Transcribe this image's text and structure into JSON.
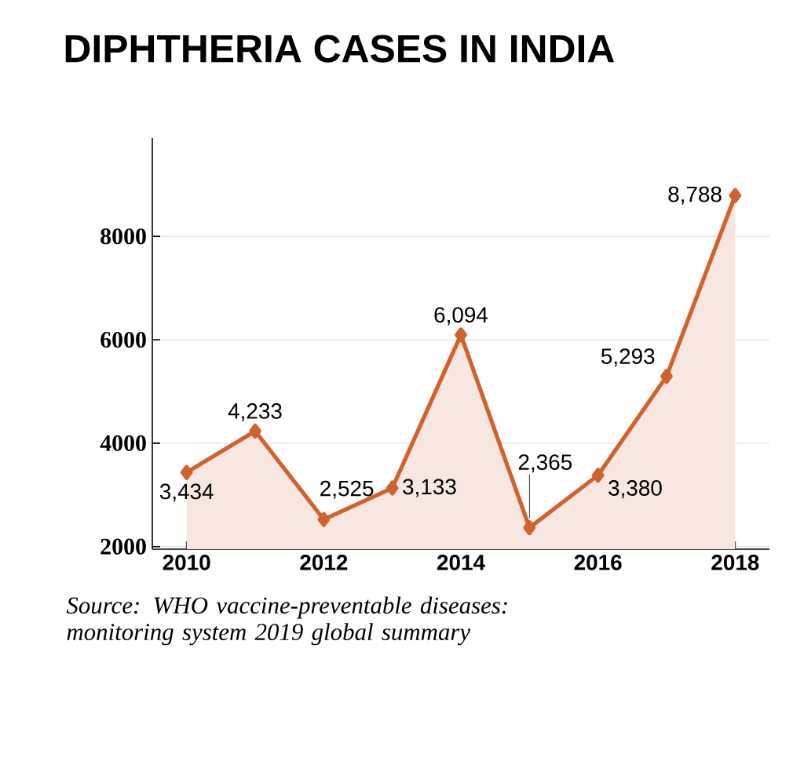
{
  "chart_data": {
    "type": "area",
    "title": "DIPHTHERIA CASES IN INDIA",
    "x": [
      2010,
      2011,
      2012,
      2013,
      2014,
      2015,
      2016,
      2017,
      2018
    ],
    "series": [
      {
        "color": "#d0622e",
        "values": [
          3434,
          4233,
          2525,
          3133,
          6094,
          2365,
          3380,
          5293,
          8788
        ],
        "value_labels": [
          "3,434",
          "4,233",
          "2,525",
          "3,133",
          "6,094",
          "2,365",
          "3,380",
          "5,293",
          "8,788"
        ]
      }
    ],
    "xlim": [
      2009.5,
      2018.5
    ],
    "ylim": [
      1950,
      9900
    ],
    "xticks": [
      2010,
      2012,
      2014,
      2016,
      2018
    ],
    "yticks": [
      2000,
      4000,
      6000,
      8000
    ],
    "grid": "y",
    "marker": "diamond",
    "annotations": [
      "Source: WHO vaccine-preventable diseases: monitoring system 2019 global summary"
    ]
  }
}
